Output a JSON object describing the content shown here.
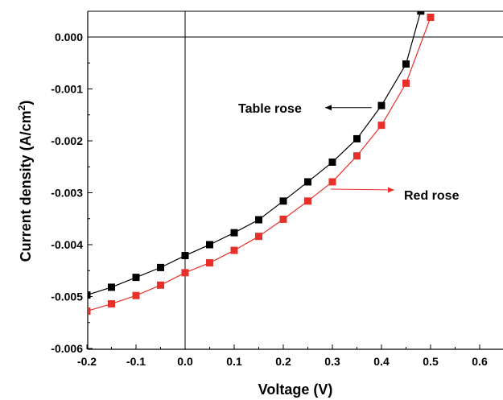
{
  "chart_data": {
    "type": "line",
    "title": "",
    "xlabel": "Voltage (V)",
    "ylabel": "Current density (A/cm²)",
    "xlim": [
      -0.2,
      0.65
    ],
    "ylim": [
      -0.006,
      0.0005
    ],
    "x_ticks": [
      "-0.2",
      "-0.1",
      "0.0",
      "0.1",
      "0.2",
      "0.3",
      "0.4",
      "0.5",
      "0.6"
    ],
    "y_ticks": [
      "0.000",
      "-0.001",
      "-0.002",
      "-0.003",
      "-0.004",
      "-0.005",
      "-0.006"
    ],
    "grid": false,
    "reference_lines": {
      "x": 0,
      "y": 0
    },
    "series": [
      {
        "name": "Table rose",
        "color": "#000000",
        "marker": "square",
        "x": [
          -0.2,
          -0.15,
          -0.1,
          -0.05,
          0.0,
          0.05,
          0.1,
          0.15,
          0.2,
          0.25,
          0.3,
          0.35,
          0.4,
          0.45,
          0.48
        ],
        "y": [
          -0.00497,
          -0.00482,
          -0.00463,
          -0.00444,
          -0.00421,
          -0.004,
          -0.00377,
          -0.00352,
          -0.00316,
          -0.00279,
          -0.00241,
          -0.00196,
          -0.00132,
          -0.00052,
          0.0005
        ]
      },
      {
        "name": "Red rose",
        "color": "#e8302a",
        "marker": "square",
        "x": [
          -0.2,
          -0.15,
          -0.1,
          -0.05,
          0.0,
          0.05,
          0.1,
          0.15,
          0.2,
          0.25,
          0.3,
          0.35,
          0.4,
          0.45,
          0.5
        ],
        "y": [
          -0.00528,
          -0.00514,
          -0.00498,
          -0.00478,
          -0.00454,
          -0.00435,
          -0.00411,
          -0.00384,
          -0.00351,
          -0.00316,
          -0.00279,
          -0.00229,
          -0.0017,
          -0.00089,
          0.00038
        ]
      }
    ],
    "annotations": [
      {
        "text": "Table rose",
        "arrow_color": "#000000",
        "at": [
          0.38,
          -0.00136
        ]
      },
      {
        "text": "Red rose",
        "arrow_color": "#e8302a",
        "at": [
          0.28,
          -0.00293
        ]
      }
    ]
  }
}
